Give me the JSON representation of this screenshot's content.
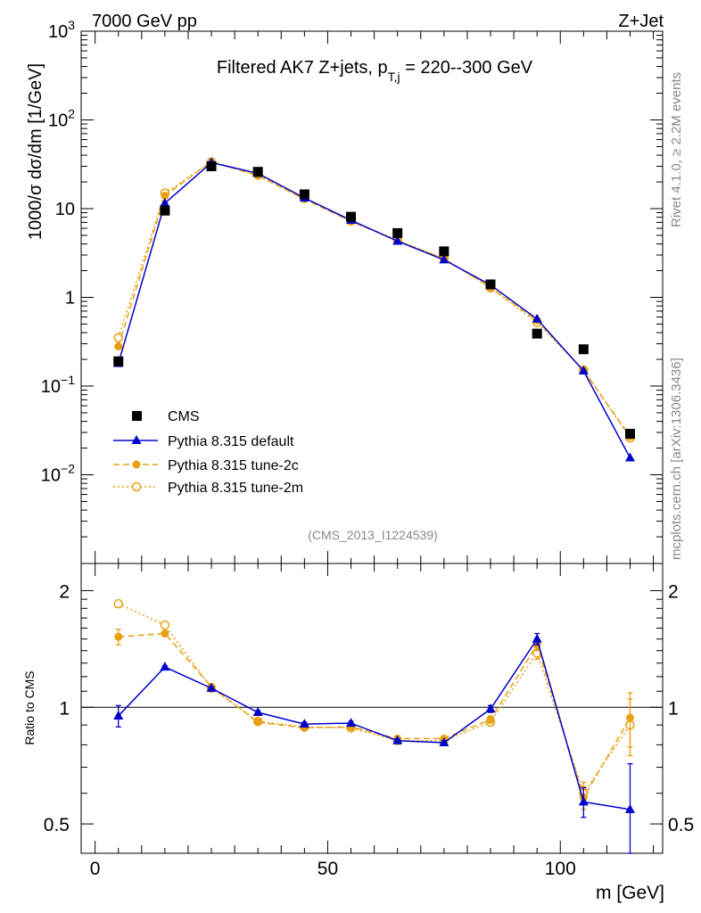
{
  "header": {
    "left": "7000 GeV pp",
    "right": "Z+Jet",
    "side_rivet": "Rivet 4.1.0, ≥ 2.2M events",
    "side_mcplots": "mcplots.cern.ch [arXiv:1306.3436]"
  },
  "colors": {
    "cms": "#000000",
    "default": "#0000cc",
    "tune2c": "#e8a010",
    "tune2m": "#e8a010"
  },
  "chart_data": [
    {
      "type": "line",
      "panel": "main",
      "title_main": "Filtered AK7 Z+jets, p",
      "title_sub": "T,j",
      "title_rest": " = 220--300 GeV",
      "ylabel": "1000/σ  dσ/dm [1/GeV]",
      "yscale": "log",
      "ylim": [
        0.001,
        1000
      ],
      "xlim": [
        -3,
        122
      ],
      "yticks": [
        {
          "v": 1000,
          "base": "10",
          "exp": "3"
        },
        {
          "v": 100,
          "base": "10",
          "exp": "2"
        },
        {
          "v": 10,
          "base": "10",
          "exp": ""
        },
        {
          "v": 1,
          "base": "1",
          "exp": ""
        },
        {
          "v": 0.1,
          "base": "10",
          "exp": "−1"
        },
        {
          "v": 0.01,
          "base": "10",
          "exp": "−2"
        }
      ],
      "watermark": "(CMS_2013_I1224539)",
      "legend_position": "lower-left",
      "x": [
        5,
        15,
        25,
        35,
        45,
        55,
        65,
        75,
        85,
        95,
        105,
        115
      ],
      "series": [
        {
          "name": "CMS",
          "style": "square",
          "values": [
            0.19,
            9.5,
            30,
            26,
            14.5,
            8.1,
            5.3,
            3.3,
            1.4,
            0.39,
            0.26,
            0.029
          ]
        },
        {
          "name": "Pythia 8.315 default",
          "style": "triangle-solid",
          "values": [
            0.18,
            11.5,
            33,
            25,
            13.2,
            7.4,
            4.3,
            2.65,
            1.38,
            0.57,
            0.148,
            0.0155
          ]
        },
        {
          "name": "Pythia 8.315 tune-2c",
          "style": "dot-dashed",
          "values": [
            0.28,
            14,
            34,
            23.5,
            12.8,
            7.2,
            4.35,
            2.72,
            1.3,
            0.55,
            0.15,
            0.027
          ]
        },
        {
          "name": "Pythia 8.315 tune-2m",
          "style": "circle-dotted",
          "values": [
            0.35,
            15,
            33.5,
            24,
            13.0,
            7.25,
            4.4,
            2.75,
            1.28,
            0.52,
            0.152,
            0.026
          ]
        }
      ]
    },
    {
      "type": "line",
      "panel": "ratio",
      "ylabel": "Ratio to CMS",
      "xlabel": "m [GeV]",
      "yscale": "log",
      "ylim": [
        0.42,
        2.35
      ],
      "xlim": [
        -3,
        122
      ],
      "yticks": [
        {
          "v": 2,
          "label": "2"
        },
        {
          "v": 1,
          "label": "1"
        },
        {
          "v": 0.5,
          "label": "0.5"
        }
      ],
      "xticks": [
        {
          "v": 0,
          "label": "0"
        },
        {
          "v": 50,
          "label": "50"
        },
        {
          "v": 100,
          "label": "100"
        }
      ],
      "reference": 1,
      "x": [
        5,
        15,
        25,
        35,
        45,
        55,
        65,
        75,
        85,
        95,
        105,
        115
      ],
      "series": [
        {
          "name": "Pythia 8.315 default",
          "style": "triangle-solid",
          "values": [
            0.95,
            1.27,
            1.12,
            0.97,
            0.905,
            0.91,
            0.82,
            0.81,
            0.99,
            1.5,
            0.57,
            0.545
          ],
          "errors": [
            0.06,
            0.01,
            0.01,
            0.01,
            0.01,
            0.01,
            0.01,
            0.01,
            0.02,
            0.05,
            0.05,
            0.17
          ]
        },
        {
          "name": "Pythia 8.315 tune-2c",
          "style": "dot-dashed",
          "values": [
            1.52,
            1.55,
            1.13,
            0.915,
            0.885,
            0.89,
            0.83,
            0.83,
            0.93,
            1.45,
            0.585,
            0.94
          ],
          "errors": [
            0.07,
            0.02,
            0.01,
            0.01,
            0.01,
            0.01,
            0.01,
            0.01,
            0.02,
            0.05,
            0.04,
            0.15
          ]
        },
        {
          "name": "Pythia 8.315 tune-2m",
          "style": "circle-dotted",
          "values": [
            1.85,
            1.63,
            1.12,
            0.92,
            0.89,
            0.885,
            0.82,
            0.82,
            0.915,
            1.38,
            0.6,
            0.9
          ],
          "errors": [
            0.04,
            0.01,
            0.01,
            0.01,
            0.01,
            0.01,
            0.01,
            0.01,
            0.02,
            0.05,
            0.04,
            0.15
          ]
        }
      ]
    }
  ]
}
